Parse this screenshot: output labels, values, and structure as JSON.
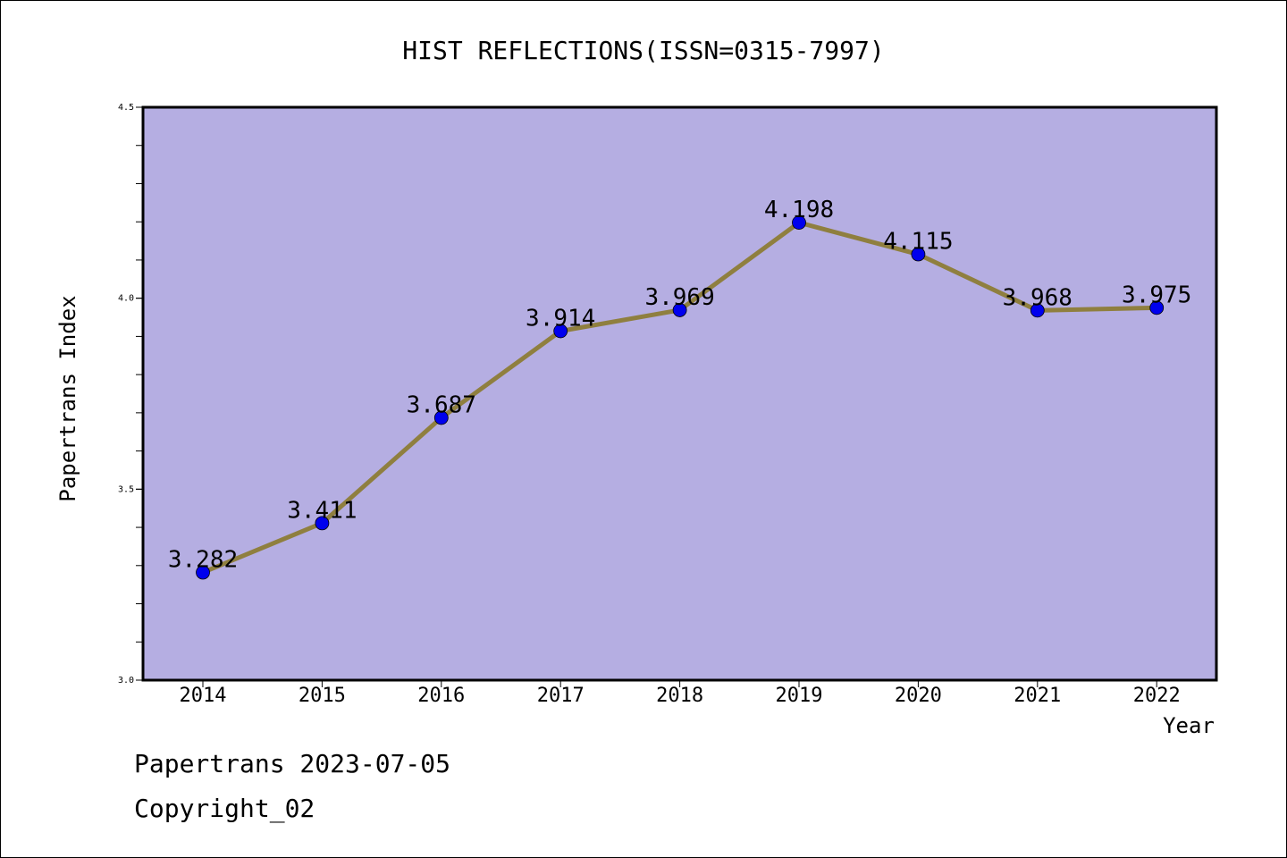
{
  "chart_data": {
    "type": "line",
    "title": "HIST REFLECTIONS(ISSN=0315-7997)",
    "xlabel": "Year",
    "ylabel": "Papertrans Index",
    "categories": [
      "2014",
      "2015",
      "2016",
      "2017",
      "2018",
      "2019",
      "2020",
      "2021",
      "2022"
    ],
    "series": [
      {
        "values": [
          3.282,
          3.411,
          3.687,
          3.914,
          3.969,
          4.198,
          4.115,
          3.968,
          3.975
        ],
        "labels": [
          "3.282",
          "3.411",
          "3.687",
          "3.914",
          "3.969",
          "4.198",
          "4.115",
          "3.968",
          "3.975"
        ]
      }
    ],
    "ylim": [
      3.0,
      4.5
    ],
    "yticks": [
      "3.0",
      "3.5",
      "4.0",
      "4.5"
    ],
    "grid": false,
    "colors": {
      "plot_background": "#b5aee2",
      "line": "#8f7f3f",
      "marker": "#0000ee"
    }
  },
  "footer": {
    "line1": "Papertrans 2023-07-05",
    "line2": "Copyright_02"
  }
}
